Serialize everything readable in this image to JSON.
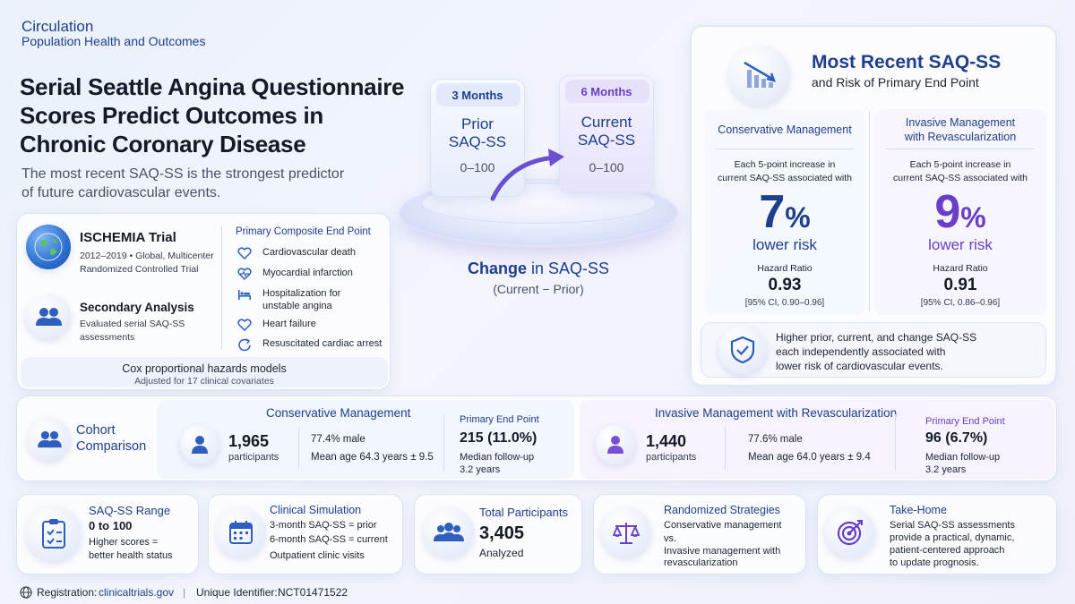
{
  "journal": {
    "name": "Circulation",
    "section": "Population Health and Outcomes"
  },
  "title": {
    "line1": "Serial Seattle Angina Questionnaire",
    "line2": "Scores Predict Outcomes in",
    "line3": "Chronic Coronary Disease",
    "subtitle1": "The most recent SAQ-SS is the strongest predictor",
    "subtitle2": "of future cardiovascular events."
  },
  "timeline": {
    "prior": {
      "month": "3 Months",
      "label1": "Prior",
      "label2": "SAQ-SS",
      "range": "0–100"
    },
    "current": {
      "month": "6 Months",
      "label1": "Current",
      "label2": "SAQ-SS",
      "range": "0–100"
    },
    "change_bold": "Change",
    "change_rest": " in SAQ-SS",
    "change_sub": "(Current − Prior)"
  },
  "trial": {
    "name": "ISCHEMIA Trial",
    "desc1": "2012–2019 • Global, Multicenter",
    "desc2": "Randomized Controlled Trial",
    "secondary_title": "Secondary Analysis",
    "secondary_desc1": "Evaluated serial SAQ-SS",
    "secondary_desc2": "assessments",
    "endpoint_title": "Primary Composite End Point",
    "endpoints": [
      {
        "icon": "heart-icon",
        "label1": "Cardiovascular death",
        "label2": ""
      },
      {
        "icon": "heart-pulse-icon",
        "label1": "Myocardial infarction",
        "label2": ""
      },
      {
        "icon": "hospital-bed-icon",
        "label1": "Hospitalization for",
        "label2": "unstable angina"
      },
      {
        "icon": "heart-icon",
        "label1": "Heart failure",
        "label2": ""
      },
      {
        "icon": "resuscitation-icon",
        "label1": "Resuscitated cardiac arrest",
        "label2": ""
      }
    ],
    "cox1": "Cox proportional hazards models",
    "cox2": "Adjusted for 17 clinical covariates"
  },
  "recent": {
    "title": "Most Recent SAQ-SS",
    "subtitle": "and Risk of Primary End Point",
    "conservative": {
      "header": "Conservative Management",
      "desc1": "Each 5-point increase in",
      "desc2": "current SAQ-SS associated with",
      "pct": "7",
      "pct_sign": "%",
      "lower": "lower risk",
      "hr_label": "Hazard Ratio",
      "hr": "0.93",
      "ci": "[95% CI, 0.90–0.96]"
    },
    "invasive": {
      "header1": "Invasive Management",
      "header2": "with Revascularization",
      "desc1": "Each 5-point increase in",
      "desc2": "current SAQ-SS associated with",
      "pct": "9",
      "pct_sign": "%",
      "lower": "lower risk",
      "hr_label": "Hazard Ratio",
      "hr": "0.91",
      "ci": "[95% CI, 0.86–0.96]"
    },
    "note1": "Higher prior, current, and change SAQ-SS",
    "note2": "each independently associated with",
    "note3": "lower risk of cardiovascular events."
  },
  "cohort": {
    "label1": "Cohort",
    "label2": "Comparison",
    "conservative": {
      "title": "Conservative Management",
      "n": "1,965",
      "n_label": "participants",
      "male": "77.4% male",
      "age": "Mean age 64.3 years ± 9.5",
      "ep_label": "Primary End Point",
      "ep": "215 (11.0%)",
      "fu1": "Median follow-up",
      "fu2": "3.2 years"
    },
    "invasive": {
      "title": "Invasive Management with Revascularization",
      "n": "1,440",
      "n_label": "participants",
      "male": "77.6% male",
      "age": "Mean age 64.0 years ± 9.4",
      "ep_label": "Primary End Point",
      "ep": "96 (6.7%)",
      "fu1": "Median follow-up",
      "fu2": "3.2 years"
    }
  },
  "bottom": {
    "range": {
      "title": "SAQ-SS Range",
      "value": "0 to 100",
      "desc1": "Higher scores =",
      "desc2": "better health status"
    },
    "simulation": {
      "title": "Clinical Simulation",
      "line1": "3-month SAQ-SS = prior",
      "line2": "6-month SAQ-SS = current",
      "line3": "Outpatient clinic visits"
    },
    "total": {
      "title": "Total Participants",
      "value": "3,405",
      "desc": "Analyzed"
    },
    "strategies": {
      "title": "Randomized Strategies",
      "line1": "Conservative management",
      "line2": "vs.",
      "line3": "Invasive management with",
      "line4": "revascularization"
    },
    "takehome": {
      "title": "Take-Home",
      "line1": "Serial SAQ-SS assessments",
      "line2": "provide a practical, dynamic,",
      "line3": "patient-centered approach",
      "line4": "to update prognosis."
    }
  },
  "footer": {
    "reg_label": "Registration:",
    "reg_value": "clinicaltrials.gov",
    "divider": "|",
    "id_label": "Unique Identifier:",
    "id_value": "NCT01471522"
  }
}
